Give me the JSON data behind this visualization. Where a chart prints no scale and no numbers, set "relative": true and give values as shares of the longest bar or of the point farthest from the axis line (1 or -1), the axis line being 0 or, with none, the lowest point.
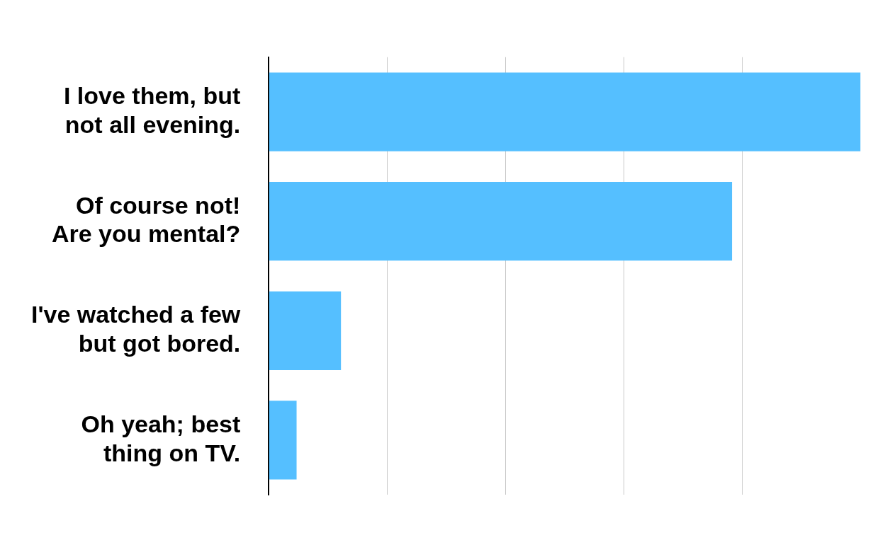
{
  "chart_data": {
    "type": "bar",
    "orientation": "horizontal",
    "relative": true,
    "grid": "x",
    "categories": [
      "I love them, but\nnot all evening.",
      "Of course not!\nAre you mental?",
      "I've watched a few\nbut got bored.",
      "Oh yeah; best\nthing on TV."
    ],
    "values": [
      1,
      0.783,
      0.122,
      0.047
    ],
    "color": "#55bfff"
  }
}
